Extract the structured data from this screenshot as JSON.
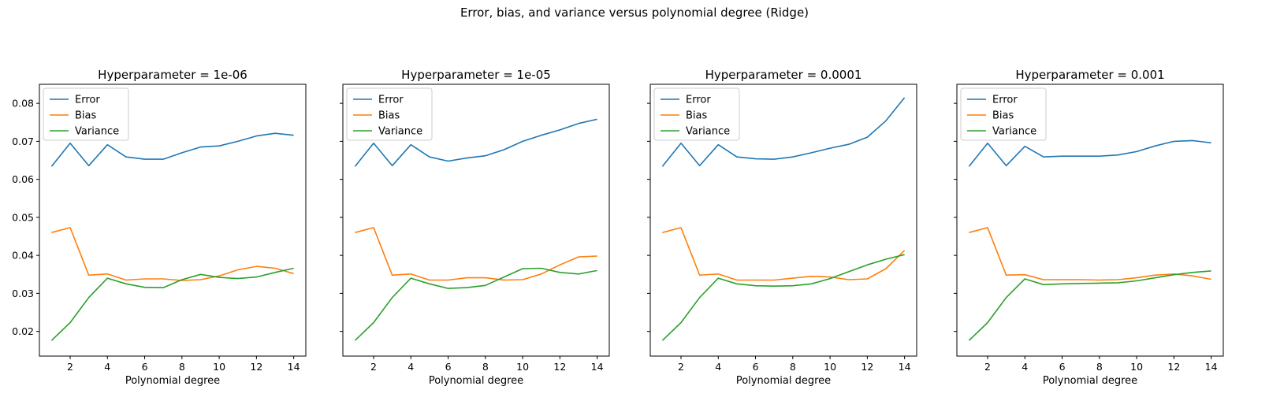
{
  "figure_title": "Error, bias, and variance versus polynomial degree (Ridge)",
  "colors": {
    "Error": "#1f77b4",
    "Bias": "#ff7f0e",
    "Variance": "#2ca02c"
  },
  "chart_data": [
    {
      "type": "line",
      "title": "Hyperparameter = 1e-06",
      "xlabel": "Polynomial degree",
      "ylabel": "",
      "x": [
        1,
        2,
        3,
        4,
        5,
        6,
        7,
        8,
        9,
        10,
        11,
        12,
        13,
        14
      ],
      "xticks": [
        2,
        4,
        6,
        8,
        10,
        12,
        14
      ],
      "xlim": [
        0.35,
        14.65
      ],
      "ylim": [
        0.0135,
        0.085
      ],
      "yticks": [
        0.02,
        0.03,
        0.04,
        0.05,
        0.06,
        0.07,
        0.08
      ],
      "ytick_labels": [
        "0.02",
        "0.03",
        "0.04",
        "0.05",
        "0.06",
        "0.07",
        "0.08"
      ],
      "show_yticklabels": true,
      "legend": "upper-left",
      "grid": false,
      "series": [
        {
          "name": "Error",
          "values": [
            0.0634,
            0.0695,
            0.0636,
            0.0691,
            0.0659,
            0.0653,
            0.0653,
            0.067,
            0.0685,
            0.0688,
            0.07,
            0.0714,
            0.0721,
            0.0716
          ]
        },
        {
          "name": "Bias",
          "values": [
            0.046,
            0.0473,
            0.0348,
            0.0351,
            0.0335,
            0.0338,
            0.0338,
            0.0334,
            0.0336,
            0.0346,
            0.0362,
            0.0371,
            0.0366,
            0.0352
          ]
        },
        {
          "name": "Variance",
          "values": [
            0.0176,
            0.0223,
            0.0289,
            0.034,
            0.0325,
            0.0316,
            0.0315,
            0.0336,
            0.035,
            0.0342,
            0.0339,
            0.0343,
            0.0355,
            0.0366
          ]
        }
      ]
    },
    {
      "type": "line",
      "title": "Hyperparameter = 1e-05",
      "xlabel": "Polynomial degree",
      "ylabel": "",
      "x": [
        1,
        2,
        3,
        4,
        5,
        6,
        7,
        8,
        9,
        10,
        11,
        12,
        13,
        14
      ],
      "xticks": [
        2,
        4,
        6,
        8,
        10,
        12,
        14
      ],
      "xlim": [
        0.35,
        14.65
      ],
      "ylim": [
        0.0135,
        0.085
      ],
      "yticks": [
        0.02,
        0.03,
        0.04,
        0.05,
        0.06,
        0.07,
        0.08
      ],
      "ytick_labels": [
        "0.02",
        "0.03",
        "0.04",
        "0.05",
        "0.06",
        "0.07",
        "0.08"
      ],
      "show_yticklabels": false,
      "legend": "upper-left",
      "grid": false,
      "series": [
        {
          "name": "Error",
          "values": [
            0.0634,
            0.0695,
            0.0636,
            0.0691,
            0.0659,
            0.0648,
            0.0656,
            0.0662,
            0.0678,
            0.07,
            0.0716,
            0.073,
            0.0747,
            0.0758
          ]
        },
        {
          "name": "Bias",
          "values": [
            0.046,
            0.0473,
            0.0348,
            0.0351,
            0.0335,
            0.0335,
            0.0341,
            0.0341,
            0.0335,
            0.0336,
            0.0351,
            0.0375,
            0.0396,
            0.0398
          ]
        },
        {
          "name": "Variance",
          "values": [
            0.0176,
            0.0223,
            0.0289,
            0.034,
            0.0325,
            0.0313,
            0.0315,
            0.0321,
            0.0343,
            0.0365,
            0.0366,
            0.0355,
            0.0351,
            0.036
          ]
        }
      ]
    },
    {
      "type": "line",
      "title": "Hyperparameter = 0.0001",
      "xlabel": "Polynomial degree",
      "ylabel": "",
      "x": [
        1,
        2,
        3,
        4,
        5,
        6,
        7,
        8,
        9,
        10,
        11,
        12,
        13,
        14
      ],
      "xticks": [
        2,
        4,
        6,
        8,
        10,
        12,
        14
      ],
      "xlim": [
        0.35,
        14.65
      ],
      "ylim": [
        0.0135,
        0.085
      ],
      "yticks": [
        0.02,
        0.03,
        0.04,
        0.05,
        0.06,
        0.07,
        0.08
      ],
      "ytick_labels": [
        "0.02",
        "0.03",
        "0.04",
        "0.05",
        "0.06",
        "0.07",
        "0.08"
      ],
      "show_yticklabels": false,
      "legend": "upper-left",
      "grid": false,
      "series": [
        {
          "name": "Error",
          "values": [
            0.0634,
            0.0695,
            0.0636,
            0.0691,
            0.0659,
            0.0654,
            0.0653,
            0.0659,
            0.067,
            0.0682,
            0.0692,
            0.0711,
            0.0754,
            0.0815
          ]
        },
        {
          "name": "Bias",
          "values": [
            0.046,
            0.0473,
            0.0348,
            0.0351,
            0.0335,
            0.0335,
            0.0335,
            0.034,
            0.0345,
            0.0343,
            0.0336,
            0.0338,
            0.0365,
            0.0413
          ]
        },
        {
          "name": "Variance",
          "values": [
            0.0176,
            0.0223,
            0.0289,
            0.034,
            0.0325,
            0.032,
            0.0319,
            0.032,
            0.0325,
            0.0339,
            0.0357,
            0.0375,
            0.039,
            0.0402
          ]
        }
      ]
    },
    {
      "type": "line",
      "title": "Hyperparameter = 0.001",
      "xlabel": "Polynomial degree",
      "ylabel": "",
      "x": [
        1,
        2,
        3,
        4,
        5,
        6,
        7,
        8,
        9,
        10,
        11,
        12,
        13,
        14
      ],
      "xticks": [
        2,
        4,
        6,
        8,
        10,
        12,
        14
      ],
      "xlim": [
        0.35,
        14.65
      ],
      "ylim": [
        0.0135,
        0.085
      ],
      "yticks": [
        0.02,
        0.03,
        0.04,
        0.05,
        0.06,
        0.07,
        0.08
      ],
      "ytick_labels": [
        "0.02",
        "0.03",
        "0.04",
        "0.05",
        "0.06",
        "0.07",
        "0.08"
      ],
      "show_yticklabels": false,
      "legend": "upper-left",
      "grid": false,
      "series": [
        {
          "name": "Error",
          "values": [
            0.0634,
            0.0695,
            0.0636,
            0.0687,
            0.0659,
            0.0661,
            0.0661,
            0.0661,
            0.0664,
            0.0673,
            0.0688,
            0.07,
            0.0702,
            0.0696
          ]
        },
        {
          "name": "Bias",
          "values": [
            0.046,
            0.0473,
            0.0348,
            0.0349,
            0.0336,
            0.0336,
            0.0336,
            0.0335,
            0.0336,
            0.0341,
            0.0348,
            0.0351,
            0.0346,
            0.0337
          ]
        },
        {
          "name": "Variance",
          "values": [
            0.0176,
            0.0223,
            0.0289,
            0.0338,
            0.0323,
            0.0325,
            0.0326,
            0.0327,
            0.0328,
            0.0333,
            0.0341,
            0.0349,
            0.0355,
            0.0359
          ]
        }
      ]
    }
  ]
}
